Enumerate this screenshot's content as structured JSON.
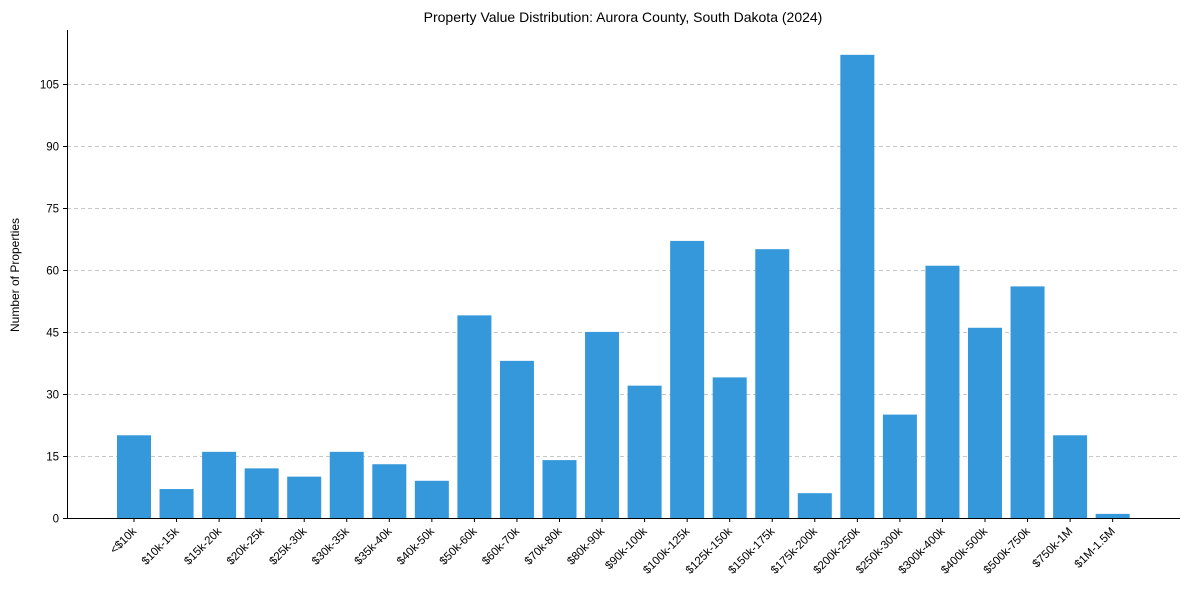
{
  "chart_data": {
    "type": "bar",
    "title": "Property Value Distribution: Aurora County, South Dakota (2024)",
    "xlabel": "",
    "ylabel": "Number of Properties",
    "ylim": [
      0,
      118
    ],
    "yticks": [
      0,
      15,
      30,
      45,
      60,
      75,
      90,
      105
    ],
    "grid": "y-dashed",
    "color": "#3498db",
    "categories": [
      "<$10k",
      "$10k-15k",
      "$15k-20k",
      "$20k-25k",
      "$25k-30k",
      "$30k-35k",
      "$35k-40k",
      "$40k-50k",
      "$50k-60k",
      "$60k-70k",
      "$70k-80k",
      "$80k-90k",
      "$90k-100k",
      "$100k-125k",
      "$125k-150k",
      "$150k-175k",
      "$175k-200k",
      "$200k-250k",
      "$250k-300k",
      "$300k-400k",
      "$400k-500k",
      "$500k-750k",
      "$750k-1M",
      "$1M-1.5M"
    ],
    "values": [
      20,
      7,
      16,
      12,
      10,
      16,
      13,
      9,
      49,
      38,
      14,
      45,
      32,
      67,
      34,
      65,
      6,
      112,
      25,
      61,
      46,
      56,
      20,
      1
    ]
  }
}
